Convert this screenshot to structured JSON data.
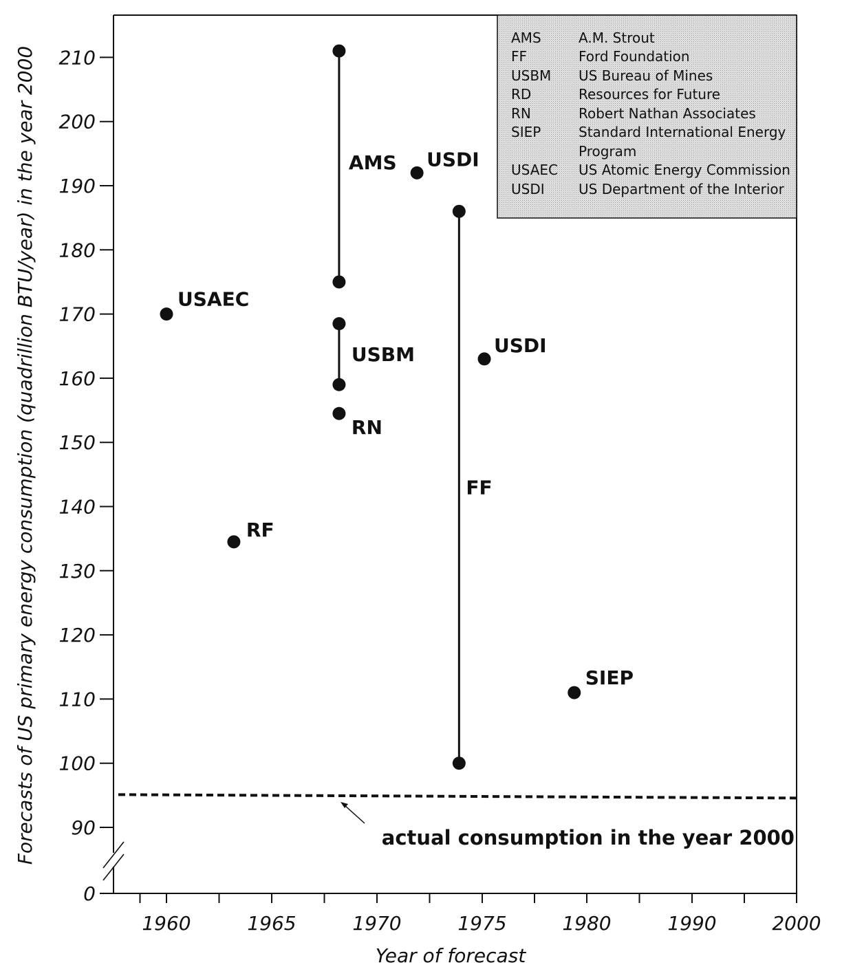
{
  "chart_data": {
    "type": "scatter",
    "xlabel": "Year of forecast",
    "ylabel": "Forecasts of US primary energy consumption (quadrillion BTU/year) in the year 2000",
    "x_ticks": [
      {
        "value": 1960,
        "label": "1960"
      },
      {
        "value": 1965,
        "label": "1965"
      },
      {
        "value": 1970,
        "label": "1970"
      },
      {
        "value": 1975,
        "label": "1975"
      },
      {
        "value": 1980,
        "label": "1980"
      },
      {
        "value": 1990,
        "label": "1990"
      },
      {
        "value": 2000,
        "label": "2000"
      }
    ],
    "y_ticks": [
      {
        "value": 0,
        "label": "0"
      },
      {
        "value": 90,
        "label": "90"
      },
      {
        "value": 100,
        "label": "100"
      },
      {
        "value": 110,
        "label": "110"
      },
      {
        "value": 120,
        "label": "120"
      },
      {
        "value": 130,
        "label": "130"
      },
      {
        "value": 140,
        "label": "140"
      },
      {
        "value": 150,
        "label": "150"
      },
      {
        "value": 160,
        "label": "160"
      },
      {
        "value": 170,
        "label": "170"
      },
      {
        "value": 180,
        "label": "180"
      },
      {
        "value": 190,
        "label": "190"
      },
      {
        "value": 200,
        "label": "200"
      },
      {
        "value": 210,
        "label": "210"
      }
    ],
    "axis_break": "between 0 and 90 on the y-axis",
    "points": [
      {
        "label": "USAEC",
        "x": 1960,
        "y": 170
      },
      {
        "label": "RF",
        "x": 1963.2,
        "y": 134.5
      },
      {
        "label": "RN",
        "x": 1968.2,
        "y": 154.5
      },
      {
        "label": "USDI",
        "x": 1971.9,
        "y": 192
      },
      {
        "label": "USDI",
        "x": 1975.1,
        "y": 163
      },
      {
        "label": "SIEP",
        "x": 1979.4,
        "y": 111
      }
    ],
    "ranges": [
      {
        "label": "AMS",
        "x": 1968.2,
        "low": 175,
        "high": 211
      },
      {
        "label": "USBM",
        "x": 1968.2,
        "low": 159,
        "high": 168.5
      },
      {
        "label": "FF",
        "x": 1973.9,
        "low": 100,
        "high": 186
      }
    ],
    "reference_line": {
      "value": 95,
      "label": "actual consumption in the year 2000",
      "style": "dashed"
    },
    "legend": {
      "placement": "top-right",
      "entries": [
        {
          "abbr": "AMS",
          "name": "A.M. Strout"
        },
        {
          "abbr": "FF",
          "name": "Ford Foundation"
        },
        {
          "abbr": "USBM",
          "name": "US Bureau of Mines"
        },
        {
          "abbr": "RD",
          "name": "Resources for Future"
        },
        {
          "abbr": "RN",
          "name": "Robert Nathan Associates"
        },
        {
          "abbr": "SIEP",
          "name": "Standard International Energy",
          "name_cont": "Program"
        },
        {
          "abbr": "USAEC",
          "name": "US Atomic Energy Commission"
        },
        {
          "abbr": "USDI",
          "name": "US Department of the Interior"
        }
      ]
    }
  }
}
